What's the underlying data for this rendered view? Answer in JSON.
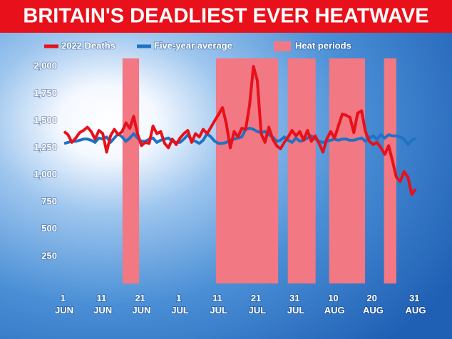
{
  "chart_data": {
    "type": "line",
    "title": "BRITAIN'S DEADLIEST EVER HEATWAVE",
    "categories": [
      "1 JUN",
      null,
      null,
      null,
      null,
      null,
      null,
      null,
      null,
      null,
      "11 JUN",
      null,
      null,
      null,
      null,
      null,
      null,
      null,
      null,
      null,
      "21 JUN",
      null,
      null,
      null,
      null,
      null,
      null,
      null,
      null,
      null,
      "1 JUL",
      null,
      null,
      null,
      null,
      null,
      null,
      null,
      null,
      null,
      "11 JUL",
      null,
      null,
      null,
      null,
      null,
      null,
      null,
      null,
      null,
      "21 JUL",
      null,
      null,
      null,
      null,
      null,
      null,
      null,
      null,
      null,
      "31 JUL",
      null,
      null,
      null,
      null,
      null,
      null,
      null,
      null,
      null,
      "10 AUG",
      null,
      null,
      null,
      null,
      null,
      null,
      null,
      null,
      null,
      "20 AUG",
      null,
      null,
      null,
      null,
      null,
      null,
      null,
      null,
      null,
      null,
      "31 AUG"
    ],
    "series": [
      {
        "name": "2022 Deaths",
        "color": "#e8101a",
        "values": [
          1400,
          1370,
          1300,
          1340,
          1390,
          1410,
          1440,
          1400,
          1330,
          1410,
          1380,
          1210,
          1360,
          1420,
          1370,
          1400,
          1480,
          1430,
          1540,
          1380,
          1270,
          1300,
          1290,
          1450,
          1380,
          1400,
          1290,
          1250,
          1330,
          1280,
          1340,
          1380,
          1410,
          1300,
          1380,
          1350,
          1420,
          1380,
          1440,
          1500,
          1560,
          1620,
          1470,
          1250,
          1400,
          1350,
          1430,
          1420,
          1640,
          2000,
          1870,
          1380,
          1300,
          1440,
          1330,
          1270,
          1240,
          1300,
          1350,
          1410,
          1360,
          1400,
          1320,
          1410,
          1310,
          1360,
          1290,
          1210,
          1330,
          1400,
          1340,
          1450,
          1560,
          1550,
          1530,
          1390,
          1570,
          1590,
          1400,
          1310,
          1280,
          1300,
          1250,
          1190,
          1270,
          1130,
          980,
          940,
          1030,
          980,
          820,
          870
        ]
      },
      {
        "name": "Five-year average",
        "color": "#1f72c4",
        "values": [
          1290,
          1300,
          1310,
          1310,
          1320,
          1330,
          1330,
          1320,
          1300,
          1340,
          1330,
          1350,
          1300,
          1340,
          1380,
          1350,
          1310,
          1340,
          1380,
          1340,
          1310,
          1310,
          1330,
          1340,
          1300,
          1320,
          1330,
          1340,
          1310,
          1300,
          1300,
          1330,
          1370,
          1320,
          1310,
          1290,
          1320,
          1380,
          1350,
          1310,
          1290,
          1290,
          1300,
          1320,
          1330,
          1340,
          1350,
          1420,
          1430,
          1420,
          1400,
          1390,
          1400,
          1370,
          1350,
          1310,
          1320,
          1350,
          1320,
          1300,
          1340,
          1310,
          1320,
          1340,
          1360,
          1330,
          1310,
          1300,
          1310,
          1320,
          1330,
          1320,
          1330,
          1330,
          1320,
          1320,
          1330,
          1340,
          1310,
          1340,
          1360,
          1330,
          1370,
          1340,
          1370,
          1360,
          1360,
          1350,
          1330,
          1280,
          1320,
          1340
        ]
      }
    ],
    "heat_periods": {
      "name": "Heat periods",
      "color": "#f27884",
      "ranges": [
        [
          15.1,
          19.4
        ],
        [
          39.3,
          55.4
        ],
        [
          57.9,
          65.1
        ],
        [
          68.6,
          77.9
        ],
        [
          82.8,
          86
        ]
      ]
    },
    "ylim": [
      0,
      2100
    ],
    "yticks": [
      250,
      500,
      750,
      {
        "value": 1000,
        "label": "1,000"
      },
      {
        "value": 1250,
        "label": "1,250"
      },
      {
        "value": 1500,
        "label": "1,500"
      },
      {
        "value": 1750,
        "label": "1,750"
      },
      {
        "value": 2000,
        "label": "2,000"
      }
    ],
    "grid": false
  }
}
